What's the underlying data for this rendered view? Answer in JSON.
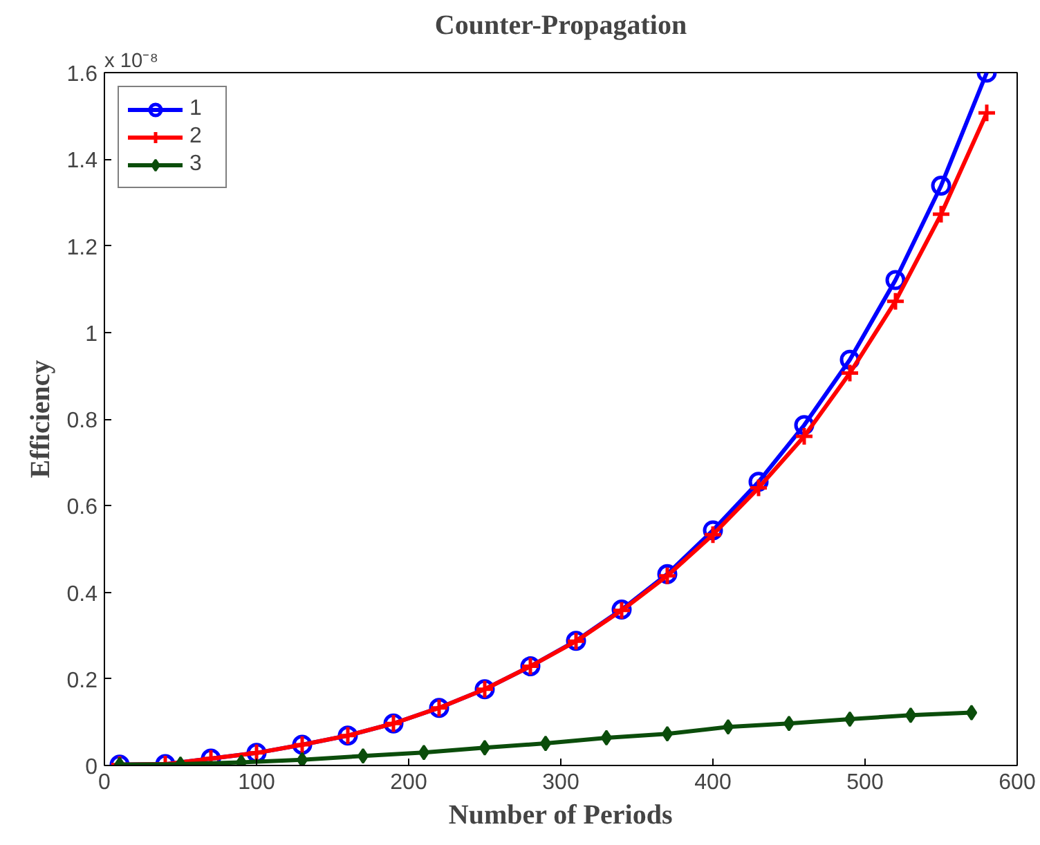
{
  "chart_data": {
    "type": "line",
    "title": "Counter-Propagation",
    "xlabel": "Number of Periods",
    "ylabel": "Efficiency",
    "annotations": [
      "x 10⁻⁸"
    ],
    "xlim": [
      0,
      600
    ],
    "xticks": [
      0,
      100,
      200,
      300,
      400,
      500,
      600
    ],
    "ylim": [
      0,
      1.6
    ],
    "yticks": [
      0,
      0.2,
      0.4,
      0.6,
      0.8,
      1,
      1.2,
      1.4,
      1.6
    ],
    "grid": false,
    "legend": "top left",
    "line_style": "solid",
    "series": [
      {
        "name": "1",
        "color": "#0000ff",
        "marker": "circle",
        "x": [
          10,
          40,
          70,
          100,
          130,
          160,
          190,
          220,
          250,
          280,
          310,
          340,
          370,
          400,
          430,
          460,
          490,
          520,
          550,
          580
        ],
        "values": [
          0.002,
          0.003,
          0.016,
          0.029,
          0.048,
          0.069,
          0.097,
          0.133,
          0.176,
          0.229,
          0.288,
          0.36,
          0.442,
          0.543,
          0.655,
          0.786,
          0.937,
          1.121,
          1.339,
          1.6
        ]
      },
      {
        "name": "2",
        "color": "#ff0000",
        "marker": "cross",
        "x": [
          10,
          40,
          70,
          100,
          130,
          160,
          190,
          220,
          250,
          280,
          310,
          340,
          370,
          400,
          430,
          460,
          490,
          520,
          550,
          580
        ],
        "values": [
          0.002,
          0.003,
          0.016,
          0.029,
          0.048,
          0.069,
          0.097,
          0.133,
          0.176,
          0.229,
          0.287,
          0.358,
          0.438,
          0.533,
          0.641,
          0.76,
          0.906,
          1.072,
          1.273,
          1.507
        ]
      },
      {
        "name": "3",
        "color": "#0b4d0b",
        "marker": "diamond",
        "x": [
          10,
          50,
          90,
          130,
          170,
          210,
          250,
          290,
          330,
          370,
          410,
          450,
          490,
          530,
          570
        ],
        "values": [
          0.002,
          0.003,
          0.007,
          0.013,
          0.022,
          0.03,
          0.041,
          0.051,
          0.064,
          0.073,
          0.089,
          0.097,
          0.107,
          0.116,
          0.122
        ]
      }
    ]
  }
}
